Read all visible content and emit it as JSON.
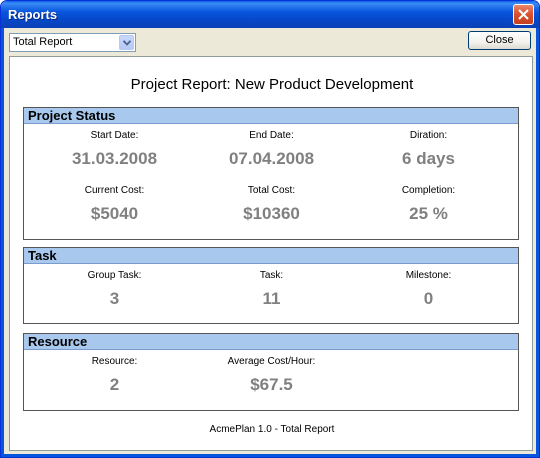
{
  "window": {
    "title": "Reports"
  },
  "toolbar": {
    "report_select_value": "Total Report",
    "close_label": "Close"
  },
  "report": {
    "title": "Project Report: New Product Development",
    "footer": "AcmePlan 1.0 - Total Report"
  },
  "project_status": {
    "header": "Project Status",
    "start_date_label": "Start Date:",
    "start_date_value": "31.03.2008",
    "end_date_label": "End Date:",
    "end_date_value": "07.04.2008",
    "duration_label": "Diration:",
    "duration_value": "6 days",
    "current_cost_label": "Current Cost:",
    "current_cost_value": "$5040",
    "total_cost_label": "Total Cost:",
    "total_cost_value": "$10360",
    "completion_label": "Completion:",
    "completion_value": "25 %"
  },
  "task": {
    "header": "Task",
    "group_task_label": "Group Task:",
    "group_task_value": "3",
    "task_label": "Task:",
    "task_value": "11",
    "milestone_label": "Milestone:",
    "milestone_value": "0"
  },
  "resource": {
    "header": "Resource",
    "resource_label": "Resource:",
    "resource_value": "2",
    "avg_cost_label": "Average Cost/Hour:",
    "avg_cost_value": "$67.5"
  },
  "colors": {
    "titlebar": "#0855dd",
    "group_header": "#a8c8ee",
    "value_text": "#808080"
  }
}
